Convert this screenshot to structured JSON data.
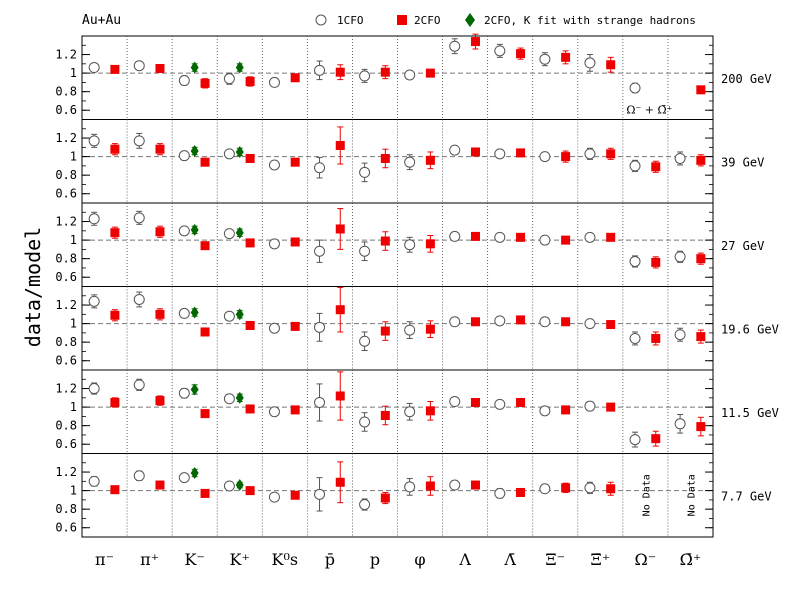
{
  "chart_data": {
    "type": "scatter",
    "title": "Au+Au",
    "ylabel": "data/model",
    "ylim": [
      0.5,
      1.4
    ],
    "yticks": [
      "0.6",
      "0.8",
      "1",
      "1.2"
    ],
    "reference_line": 1,
    "grid": false,
    "legend_position": "top-right",
    "categories": [
      "π⁻",
      "π⁺",
      "K⁻",
      "K⁺",
      "K⁰s",
      "p̄",
      "p",
      "φ",
      "Λ",
      "Λ̄",
      "Ξ⁻",
      "Ξ̄⁺",
      "Ω⁻",
      "Ω̄⁺"
    ],
    "category_labels": [
      {
        "base": "π",
        "sup": "−",
        "sub": "",
        "bar": false
      },
      {
        "base": "π",
        "sup": "+",
        "sub": "",
        "bar": false
      },
      {
        "base": "K",
        "sup": "−",
        "sub": "",
        "bar": false
      },
      {
        "base": "K",
        "sup": "+",
        "sub": "",
        "bar": false
      },
      {
        "base": "K",
        "sup": "0",
        "sub": "S",
        "bar": false
      },
      {
        "base": "p",
        "sup": "",
        "sub": "",
        "bar": true
      },
      {
        "base": "p",
        "sup": "",
        "sub": "",
        "bar": false
      },
      {
        "base": "φ",
        "sup": "",
        "sub": "",
        "bar": false
      },
      {
        "base": "Λ",
        "sup": "",
        "sub": "",
        "bar": false
      },
      {
        "base": "Λ",
        "sup": "",
        "sub": "",
        "bar": true
      },
      {
        "base": "Ξ",
        "sup": "−",
        "sub": "",
        "bar": false
      },
      {
        "base": "Ξ",
        "sup": "+",
        "sub": "",
        "bar": true
      },
      {
        "base": "Ω",
        "sup": "−",
        "sub": "",
        "bar": false
      },
      {
        "base": "Ω",
        "sup": "+",
        "sub": "",
        "bar": true
      }
    ],
    "legend": [
      {
        "label": "1CFO",
        "marker": "open-circle",
        "color": "#555555"
      },
      {
        "label": "2CFO",
        "marker": "square",
        "color": "#ee0000"
      },
      {
        "label": "2CFO, K fit with strange hadrons",
        "marker": "diamond",
        "color": "#006600"
      }
    ],
    "colors": {
      "cfo1": "#555555",
      "cfo2": "#ee0000",
      "kfit": "#006600",
      "frame": "#000000",
      "reference": "#777777"
    },
    "panels": [
      {
        "energy": "200 GeV",
        "annotation": "Ω⁻ + Ω̄⁺",
        "cfo1": [
          [
            1.06,
            0.04
          ],
          [
            1.08,
            0.04
          ],
          [
            0.92,
            0.05
          ],
          [
            0.94,
            0.06
          ],
          [
            0.9,
            0.03
          ],
          [
            1.03,
            0.1
          ],
          [
            0.97,
            0.07
          ],
          [
            0.98,
            0.03
          ],
          [
            1.29,
            0.08
          ],
          [
            1.24,
            0.07
          ],
          [
            1.15,
            0.07
          ],
          [
            1.11,
            0.09
          ],
          [
            0.84,
            0.05
          ],
          null
        ],
        "cfo2": [
          [
            1.04,
            0.03
          ],
          [
            1.05,
            0.03
          ],
          [
            0.89,
            0.05
          ],
          [
            0.91,
            0.05
          ],
          [
            0.95,
            0.03
          ],
          [
            1.01,
            0.08
          ],
          [
            1.01,
            0.07
          ],
          [
            1.0,
            0.03
          ],
          [
            1.34,
            0.08
          ],
          [
            1.21,
            0.06
          ],
          [
            1.17,
            0.07
          ],
          [
            1.09,
            0.08
          ],
          null,
          [
            0.82,
            0.04
          ]
        ],
        "kfit": [
          null,
          null,
          [
            1.06,
            0.04
          ],
          [
            1.06,
            0.04
          ],
          null,
          null,
          null,
          null,
          null,
          null,
          null,
          null,
          null,
          null
        ]
      },
      {
        "energy": "39 GeV",
        "annotation": "",
        "cfo1": [
          [
            1.17,
            0.07
          ],
          [
            1.17,
            0.08
          ],
          [
            1.01,
            0.04
          ],
          [
            1.03,
            0.04
          ],
          [
            0.91,
            0.02
          ],
          [
            0.88,
            0.11
          ],
          [
            0.83,
            0.1
          ],
          [
            0.94,
            0.08
          ],
          [
            1.07,
            0.04
          ],
          [
            1.03,
            0.04
          ],
          [
            1.0,
            0.04
          ],
          [
            1.03,
            0.06
          ],
          [
            0.9,
            0.06
          ],
          [
            0.98,
            0.07
          ]
        ],
        "cfo2": [
          [
            1.08,
            0.06
          ],
          [
            1.08,
            0.06
          ],
          [
            0.94,
            0.04
          ],
          [
            0.98,
            0.04
          ],
          [
            0.94,
            0.03
          ],
          [
            1.12,
            0.2
          ],
          [
            0.98,
            0.1
          ],
          [
            0.96,
            0.09
          ],
          [
            1.05,
            0.04
          ],
          [
            1.04,
            0.04
          ],
          [
            1.0,
            0.06
          ],
          [
            1.03,
            0.06
          ],
          [
            0.89,
            0.06
          ],
          [
            0.96,
            0.06
          ]
        ],
        "kfit": [
          null,
          null,
          [
            1.06,
            0.04
          ],
          [
            1.05,
            0.04
          ],
          null,
          null,
          null,
          null,
          null,
          null,
          null,
          null,
          null,
          null
        ]
      },
      {
        "energy": "27 GeV",
        "annotation": "",
        "cfo1": [
          [
            1.23,
            0.07
          ],
          [
            1.24,
            0.07
          ],
          [
            1.1,
            0.04
          ],
          [
            1.07,
            0.04
          ],
          [
            0.96,
            0.03
          ],
          [
            0.88,
            0.12
          ],
          [
            0.88,
            0.1
          ],
          [
            0.95,
            0.08
          ],
          [
            1.04,
            0.02
          ],
          [
            1.03,
            0.02
          ],
          [
            1.0,
            0.03
          ],
          [
            1.03,
            0.03
          ],
          [
            0.77,
            0.06
          ],
          [
            0.82,
            0.06
          ]
        ],
        "cfo2": [
          [
            1.08,
            0.06
          ],
          [
            1.09,
            0.06
          ],
          [
            0.94,
            0.04
          ],
          [
            0.97,
            0.04
          ],
          [
            0.98,
            0.03
          ],
          [
            1.12,
            0.22
          ],
          [
            0.99,
            0.1
          ],
          [
            0.96,
            0.09
          ],
          [
            1.04,
            0.02
          ],
          [
            1.03,
            0.02
          ],
          [
            1.0,
            0.03
          ],
          [
            1.03,
            0.03
          ],
          [
            0.76,
            0.06
          ],
          [
            0.8,
            0.06
          ]
        ],
        "kfit": [
          null,
          null,
          [
            1.11,
            0.04
          ],
          [
            1.08,
            0.04
          ],
          null,
          null,
          null,
          null,
          null,
          null,
          null,
          null,
          null,
          null
        ]
      },
      {
        "energy": "19.6 GeV",
        "annotation": "",
        "cfo1": [
          [
            1.24,
            0.07
          ],
          [
            1.26,
            0.08
          ],
          [
            1.11,
            0.04
          ],
          [
            1.08,
            0.04
          ],
          [
            0.95,
            0.02
          ],
          [
            0.96,
            0.15
          ],
          [
            0.81,
            0.1
          ],
          [
            0.93,
            0.09
          ],
          [
            1.02,
            0.02
          ],
          [
            1.03,
            0.02
          ],
          [
            1.02,
            0.03
          ],
          [
            1.0,
            0.03
          ],
          [
            0.84,
            0.07
          ],
          [
            0.88,
            0.07
          ]
        ],
        "cfo2": [
          [
            1.09,
            0.06
          ],
          [
            1.1,
            0.06
          ],
          [
            0.91,
            0.04
          ],
          [
            0.98,
            0.04
          ],
          [
            0.97,
            0.03
          ],
          [
            1.15,
            0.24
          ],
          [
            0.92,
            0.1
          ],
          [
            0.94,
            0.09
          ],
          [
            1.02,
            0.02
          ],
          [
            1.04,
            0.02
          ],
          [
            1.02,
            0.03
          ],
          [
            0.99,
            0.03
          ],
          [
            0.84,
            0.07
          ],
          [
            0.86,
            0.07
          ]
        ],
        "kfit": [
          null,
          null,
          [
            1.12,
            0.04
          ],
          [
            1.1,
            0.04
          ],
          null,
          null,
          null,
          null,
          null,
          null,
          null,
          null,
          null,
          null
        ]
      },
      {
        "energy": "11.5 GeV",
        "annotation": "",
        "cfo1": [
          [
            1.2,
            0.06
          ],
          [
            1.24,
            0.06
          ],
          [
            1.15,
            0.05
          ],
          [
            1.09,
            0.04
          ],
          [
            0.95,
            0.03
          ],
          [
            1.05,
            0.2
          ],
          [
            0.84,
            0.1
          ],
          [
            0.95,
            0.09
          ],
          [
            1.06,
            0.03
          ],
          [
            1.03,
            0.03
          ],
          [
            0.96,
            0.03
          ],
          [
            1.01,
            0.04
          ],
          [
            0.65,
            0.08
          ],
          [
            0.82,
            0.1
          ]
        ],
        "cfo2": [
          [
            1.05,
            0.05
          ],
          [
            1.07,
            0.05
          ],
          [
            0.93,
            0.04
          ],
          [
            0.98,
            0.04
          ],
          [
            0.97,
            0.03
          ],
          [
            1.12,
            0.26
          ],
          [
            0.91,
            0.1
          ],
          [
            0.96,
            0.1
          ],
          [
            1.05,
            0.03
          ],
          [
            1.05,
            0.03
          ],
          [
            0.97,
            0.04
          ],
          [
            1.0,
            0.04
          ],
          [
            0.66,
            0.08
          ],
          [
            0.79,
            0.1
          ]
        ],
        "kfit": [
          null,
          null,
          [
            1.19,
            0.05
          ],
          [
            1.1,
            0.04
          ],
          null,
          null,
          null,
          null,
          null,
          null,
          null,
          null,
          null,
          null
        ]
      },
      {
        "energy": "7.7 GeV",
        "annotation": "",
        "no_data_label": "No Data",
        "cfo1": [
          [
            1.1,
            0.05
          ],
          [
            1.16,
            0.05
          ],
          [
            1.14,
            0.04
          ],
          [
            1.05,
            0.03
          ],
          [
            0.93,
            0.02
          ],
          [
            0.96,
            0.18
          ],
          [
            0.85,
            0.06
          ],
          [
            1.04,
            0.09
          ],
          [
            1.06,
            0.02
          ],
          [
            0.97,
            0.05
          ],
          [
            1.02,
            0.04
          ],
          [
            1.03,
            0.06
          ],
          null,
          null
        ],
        "cfo2": [
          [
            1.01,
            0.04
          ],
          [
            1.06,
            0.04
          ],
          [
            0.97,
            0.04
          ],
          [
            1.0,
            0.03
          ],
          [
            0.95,
            0.02
          ],
          [
            1.09,
            0.22
          ],
          [
            0.92,
            0.06
          ],
          [
            1.05,
            0.1
          ],
          [
            1.06,
            0.03
          ],
          [
            0.98,
            0.04
          ],
          [
            1.03,
            0.05
          ],
          [
            1.02,
            0.07
          ],
          null,
          null
        ],
        "kfit": [
          null,
          null,
          [
            1.19,
            0.04
          ],
          [
            1.06,
            0.03
          ],
          null,
          null,
          null,
          null,
          null,
          null,
          null,
          null,
          null,
          null
        ],
        "no_data": [
          false,
          false,
          false,
          false,
          false,
          false,
          false,
          false,
          false,
          false,
          false,
          false,
          true,
          true
        ]
      }
    ]
  }
}
